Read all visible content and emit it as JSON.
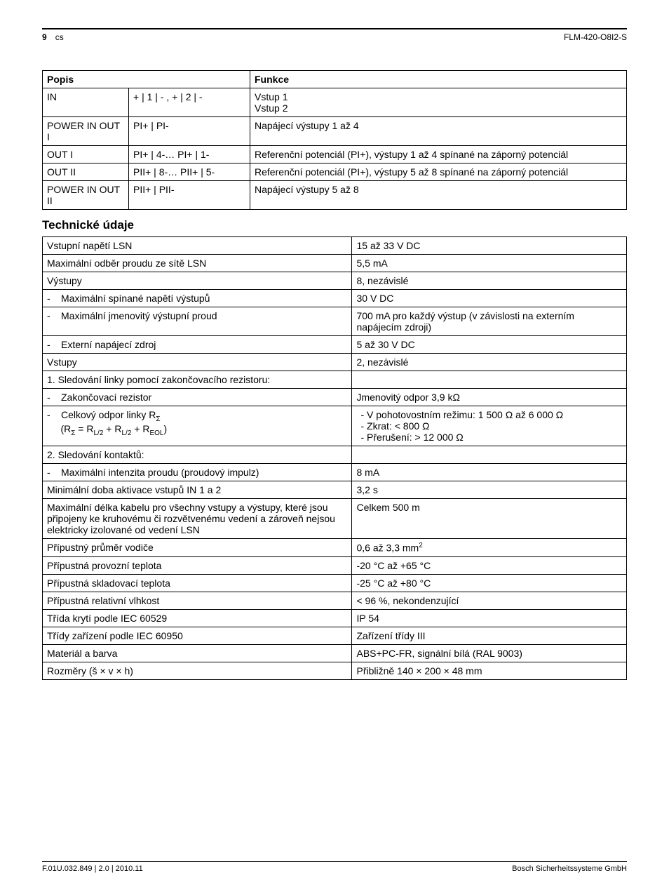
{
  "header": {
    "page_number": "9",
    "lang": "cs",
    "model": "FLM-420-O8I2-S"
  },
  "table1": {
    "headers": {
      "c1": "Popis",
      "c3": "Funkce"
    },
    "rows": [
      {
        "c1": "IN",
        "c2": "+ | 1 | - , + | 2 | -",
        "c3": "Vstup 1\nVstup 2"
      },
      {
        "c1": "POWER IN OUT I",
        "c2": "PI+ | PI-",
        "c3": "Napájecí výstupy 1 až 4"
      },
      {
        "c1": "OUT I",
        "c2": "PI+ | 4-… PI+ | 1-",
        "c3": "Referenční potenciál (PI+), výstupy 1 až 4 spínané na záporný potenciál"
      },
      {
        "c1": "OUT II",
        "c2": "PII+ | 8-… PII+ | 5-",
        "c3": "Referenční potenciál (PI+), výstupy 5 až 8 spínané na záporný potenciál"
      },
      {
        "c1": "POWER IN OUT II",
        "c2": "PII+ | PII-",
        "c3": "Napájecí výstupy 5 až 8"
      }
    ]
  },
  "section_title": "Technické údaje",
  "table2": {
    "rows": [
      {
        "label": "Vstupní napětí LSN",
        "value": "15 až 33 V DC"
      },
      {
        "label": "Maximální odběr proudu ze sítě LSN",
        "value": "5,5 mA"
      },
      {
        "label": "Výstupy",
        "value": "8, nezávislé"
      },
      {
        "label_html": "<span class='dash'>-</span>Maximální spínané napětí výstupů",
        "value": "30 V DC"
      },
      {
        "label_html": "<span class='dash'>-</span>Maximální jmenovitý výstupní proud",
        "value": "700 mA pro každý výstup (v závislosti na externím napájecím zdroji)"
      },
      {
        "label_html": "<span class='dash'>-</span>Externí napájecí zdroj",
        "value": "5 až 30 V DC"
      },
      {
        "label": "Vstupy",
        "value": "2, nezávislé"
      },
      {
        "label": "1. Sledování linky pomocí zakončovacího rezistoru:",
        "value": ""
      },
      {
        "label_html": "<span class='dash'>-</span>Zakončovací rezistor",
        "value": "Jmenovitý odpor 3,9 kΩ"
      },
      {
        "label_html": "<span class='dash'>-</span>Celkový odpor linky R<span class='sub'>Σ</span><br>&nbsp;&nbsp;&nbsp;&nbsp;&nbsp;(R<span class='sub'>Σ</span> = R<span class='sub'>L/2</span> + R<span class='sub'>L/2</span> + R<span class='sub'>EOL</span>)",
        "value_html": "<ul class='inner-list'><li>V pohotovostním režimu: 1 500 Ω až 6 000 Ω</li><li>Zkrat: &lt; 800 Ω</li><li>Přerušení: &gt; 12 000 Ω</li></ul>"
      },
      {
        "label": "2. Sledování kontaktů:",
        "value": ""
      },
      {
        "label_html": "<span class='dash'>-</span>Maximální intenzita proudu (proudový impulz)",
        "value": "8 mA"
      },
      {
        "label": "Minimální doba aktivace vstupů IN 1 a 2",
        "value": "3,2 s"
      },
      {
        "label": "Maximální délka kabelu pro všechny vstupy a výstupy, které jsou připojeny ke kruhovému či rozvětvenému vedení a zároveň nejsou elektricky izolované od vedení LSN",
        "value": "Celkem 500 m"
      },
      {
        "label": "Přípustný průměr vodiče",
        "value_html": "0,6 až 3,3 mm<span class='sup'>2</span>"
      },
      {
        "label": "Přípustná provozní teplota",
        "value": "-20 °C až +65 °C"
      },
      {
        "label": "Přípustná skladovací teplota",
        "value": "-25 °C až +80 °C"
      },
      {
        "label": "Přípustná relativní vlhkost",
        "value": "< 96 %, nekondenzující"
      },
      {
        "label": "Třída krytí podle IEC 60529",
        "value": "IP 54"
      },
      {
        "label": "Třídy zařízení podle IEC 60950",
        "value": "Zařízení třídy III"
      },
      {
        "label": "Materiál a barva",
        "value": "ABS+PC-FR, signální bílá (RAL 9003)"
      },
      {
        "label": "Rozměry (š × v × h)",
        "value": "Přibližně 140 × 200 × 48 mm"
      }
    ]
  },
  "footer": {
    "left": "F.01U.032.849 | 2.0 | 2010.11",
    "right": "Bosch Sicherheitssysteme GmbH"
  }
}
